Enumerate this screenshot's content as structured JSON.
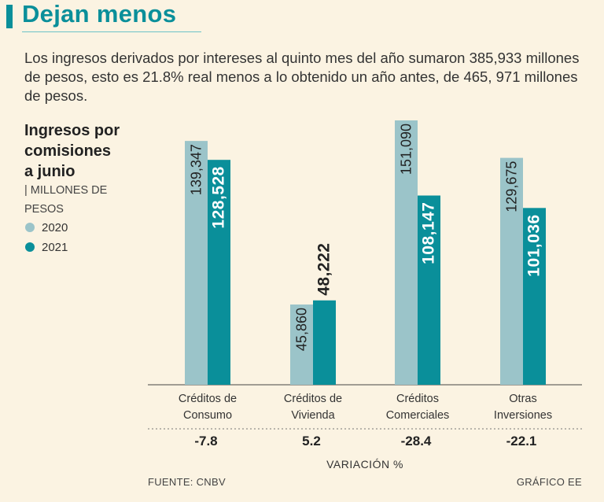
{
  "header": {
    "title": "Dejan menos",
    "lead": "Los ingresos derivados por intereses al quinto mes del año sumaron 385,933 millones de pesos, esto es 21.8% real menos a lo obtenido un año antes, de 465, 971 millones de pesos."
  },
  "legend": {
    "title_lines": [
      "Ingresos por",
      "comisiones",
      "a junio"
    ],
    "unit": "| MILLONES DE PESOS",
    "items": [
      {
        "label": "2020",
        "color": "#9bc4c9"
      },
      {
        "label": "2021",
        "color": "#0a8f9a"
      }
    ]
  },
  "chart_data": {
    "type": "bar",
    "title": "Ingresos por comisiones a junio",
    "ylabel": "Millones de pesos",
    "categories": [
      [
        "Créditos de",
        "Consumo"
      ],
      [
        "Créditos de",
        "Vivienda"
      ],
      [
        "Créditos",
        "Comerciales"
      ],
      [
        "Otras",
        "Inversiones"
      ]
    ],
    "series": [
      {
        "name": "2020",
        "values": [
          139347,
          45860,
          151090,
          129675
        ],
        "labels": [
          "139,347",
          "45,860",
          "151,090",
          "129,675"
        ]
      },
      {
        "name": "2021",
        "values": [
          128528,
          48222,
          108147,
          101036
        ],
        "labels": [
          "128,528",
          "48,222",
          "108,147",
          "101,036"
        ]
      }
    ],
    "variation": [
      "-7.8",
      "5.2",
      "-28.4",
      "-22.1"
    ],
    "variation_label": "VARIACIÓN %",
    "ylim": [
      0,
      151090
    ]
  },
  "footer": {
    "source": "FUENTE: CNBV",
    "credit": "GRÁFICO EE"
  }
}
